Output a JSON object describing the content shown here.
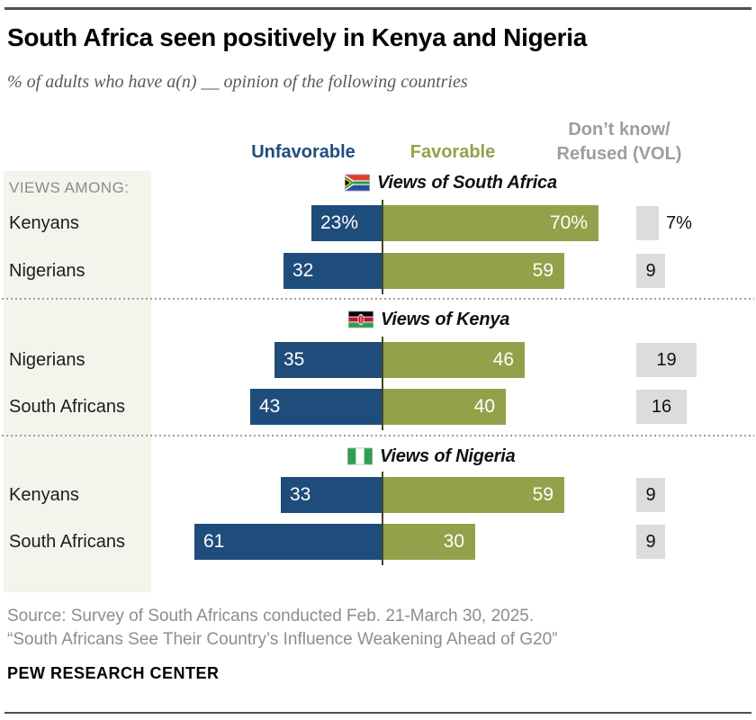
{
  "title": "South Africa seen positively in Kenya and Nigeria",
  "subtitle": "% of adults who have a(n) __ opinion of the following countries",
  "views_among_label": "VIEWS AMONG:",
  "legend": {
    "unfavorable": "Unfavorable",
    "favorable": "Favorable",
    "dk_line1": "Don’t know/",
    "dk_line2": "Refused (VOL)"
  },
  "footer": {
    "source": "Source: Survey of South Africans conducted Feb. 21-March 30, 2025.",
    "report": "“South Africans See Their Country’s Influence Weakening Ahead of G20”",
    "brand": "PEW RESEARCH CENTER"
  },
  "colors": {
    "unfavorable": "#1e4d7c",
    "favorable": "#95a04a",
    "dk_box": "#dcdcdc",
    "panel": "#f4f3ec"
  },
  "chart_data": {
    "type": "bar",
    "subtype": "diverging-horizontal",
    "units": "% of adults",
    "legend_entries": [
      "Unfavorable",
      "Favorable",
      "Don’t know/Refused (VOL)"
    ],
    "sections": [
      {
        "title": "Views of South Africa",
        "flag": "south-africa",
        "rows": [
          {
            "group": "Kenyans",
            "unfavorable": 23,
            "favorable": 70,
            "dk": 7,
            "labels": {
              "unfavorable": "23%",
              "favorable": "70%",
              "dk": "7%"
            }
          },
          {
            "group": "Nigerians",
            "unfavorable": 32,
            "favorable": 59,
            "dk": 9,
            "labels": {
              "unfavorable": "32",
              "favorable": "59",
              "dk": "9"
            }
          }
        ]
      },
      {
        "title": "Views of Kenya",
        "flag": "kenya",
        "rows": [
          {
            "group": "Nigerians",
            "unfavorable": 35,
            "favorable": 46,
            "dk": 19,
            "labels": {
              "unfavorable": "35",
              "favorable": "46",
              "dk": "19"
            }
          },
          {
            "group": "South Africans",
            "unfavorable": 43,
            "favorable": 40,
            "dk": 16,
            "labels": {
              "unfavorable": "43",
              "favorable": "40",
              "dk": "16"
            }
          }
        ]
      },
      {
        "title": "Views of Nigeria",
        "flag": "nigeria",
        "rows": [
          {
            "group": "Kenyans",
            "unfavorable": 33,
            "favorable": 59,
            "dk": 9,
            "labels": {
              "unfavorable": "33",
              "favorable": "59",
              "dk": "9"
            }
          },
          {
            "group": "South Africans",
            "unfavorable": 61,
            "favorable": 30,
            "dk": 9,
            "labels": {
              "unfavorable": "61",
              "favorable": "30",
              "dk": "9"
            }
          }
        ]
      }
    ]
  }
}
